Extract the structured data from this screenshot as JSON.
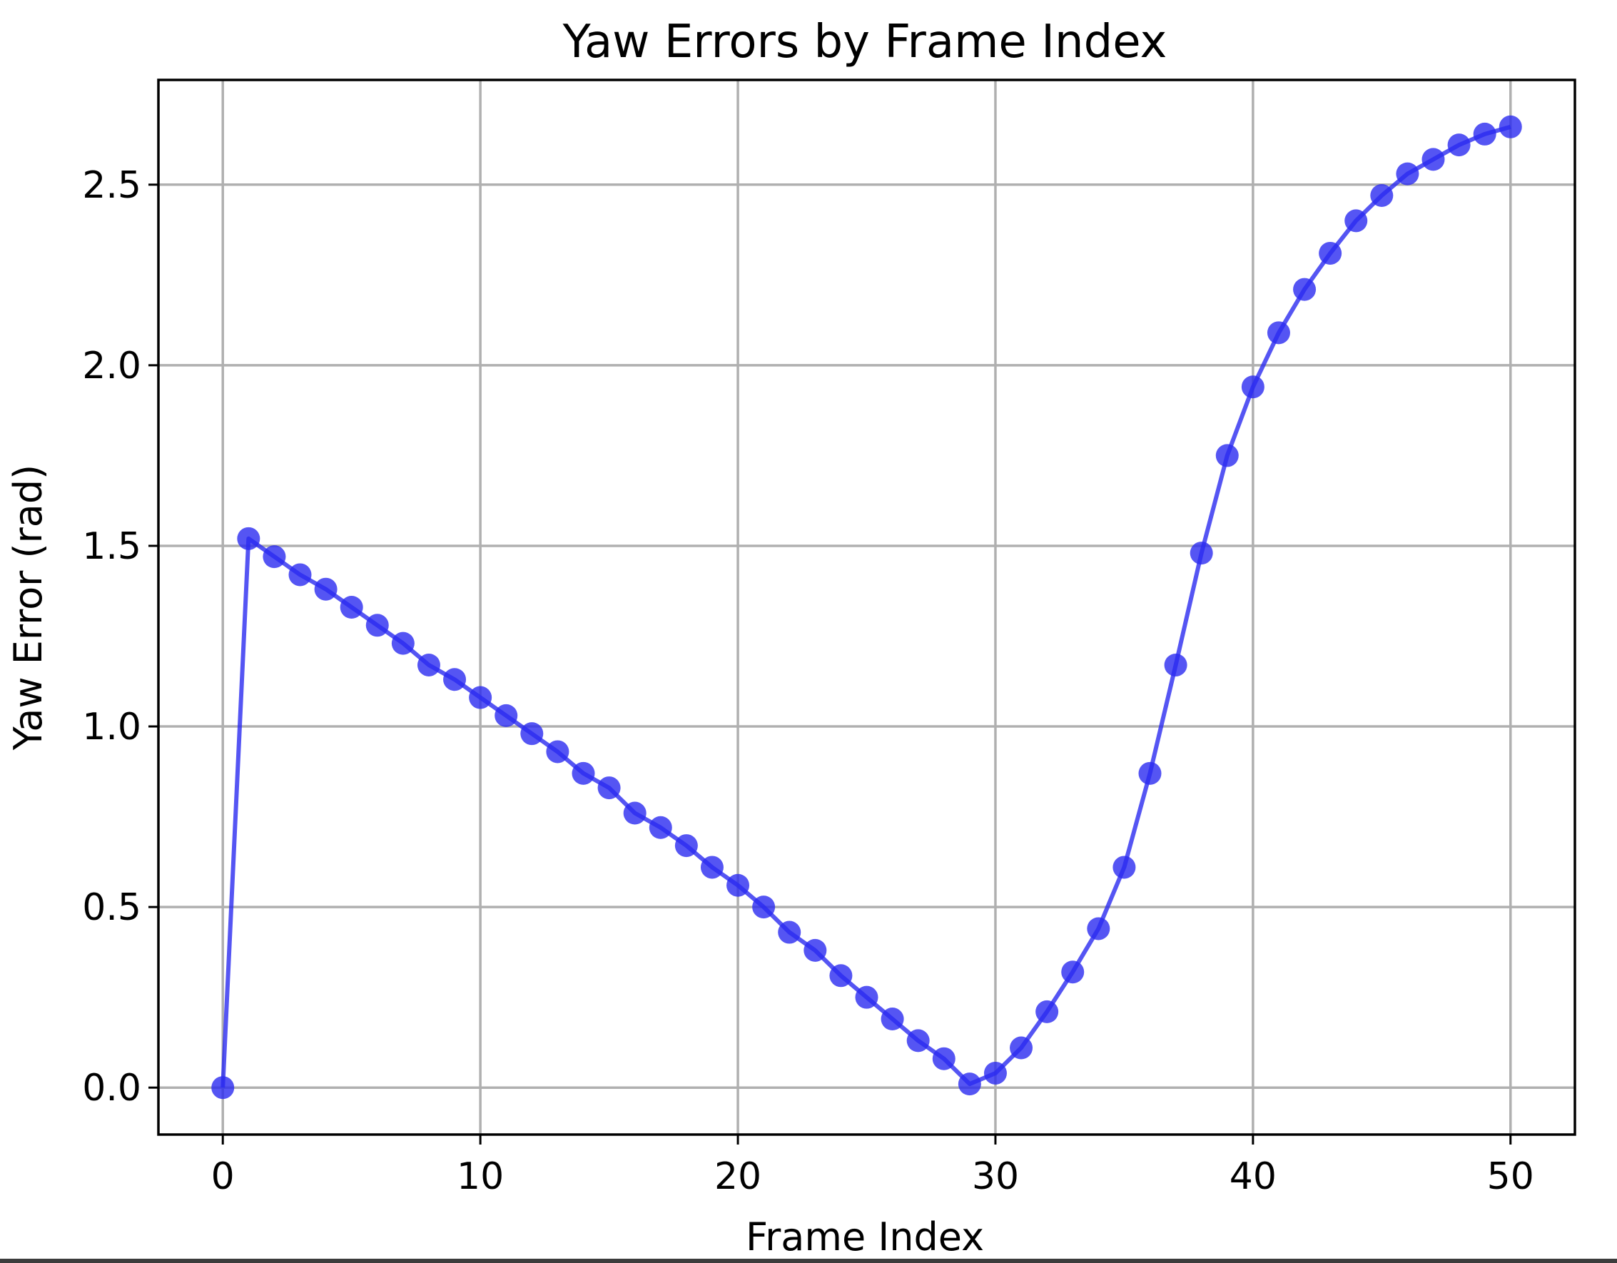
{
  "chart_data": {
    "type": "line",
    "title": "Yaw Errors by Frame Index",
    "xlabel": "Frame Index",
    "ylabel": "Yaw Error (rad)",
    "xlim": [
      -2.5,
      52.5
    ],
    "ylim": [
      -0.13,
      2.79
    ],
    "xticks": [
      0,
      10,
      20,
      30,
      40,
      50
    ],
    "xtick_labels": [
      "0",
      "10",
      "20",
      "30",
      "40",
      "50"
    ],
    "yticks": [
      0.0,
      0.5,
      1.0,
      1.5,
      2.0,
      2.5
    ],
    "ytick_labels": [
      "0.0",
      "0.5",
      "1.0",
      "1.5",
      "2.0",
      "2.5"
    ],
    "grid": true,
    "legend": "none",
    "series": [
      {
        "color": "#2a2af0",
        "marker": "circle",
        "x": [
          0,
          1,
          2,
          3,
          4,
          5,
          6,
          7,
          8,
          9,
          10,
          11,
          12,
          13,
          14,
          15,
          16,
          17,
          18,
          19,
          20,
          21,
          22,
          23,
          24,
          25,
          26,
          27,
          28,
          29,
          30,
          31,
          32,
          33,
          34,
          35,
          36,
          37,
          38,
          39,
          40,
          41,
          42,
          43,
          44,
          45,
          46,
          47,
          48,
          49,
          50
        ],
        "y": [
          0.0,
          1.52,
          1.47,
          1.42,
          1.38,
          1.33,
          1.28,
          1.23,
          1.17,
          1.13,
          1.08,
          1.03,
          0.98,
          0.93,
          0.87,
          0.83,
          0.76,
          0.72,
          0.67,
          0.61,
          0.56,
          0.5,
          0.43,
          0.38,
          0.31,
          0.25,
          0.19,
          0.13,
          0.08,
          0.01,
          0.04,
          0.11,
          0.21,
          0.32,
          0.44,
          0.61,
          0.87,
          1.17,
          1.48,
          1.75,
          1.94,
          2.09,
          2.21,
          2.31,
          2.4,
          2.47,
          2.53,
          2.57,
          2.61,
          2.64,
          2.66
        ]
      }
    ]
  }
}
